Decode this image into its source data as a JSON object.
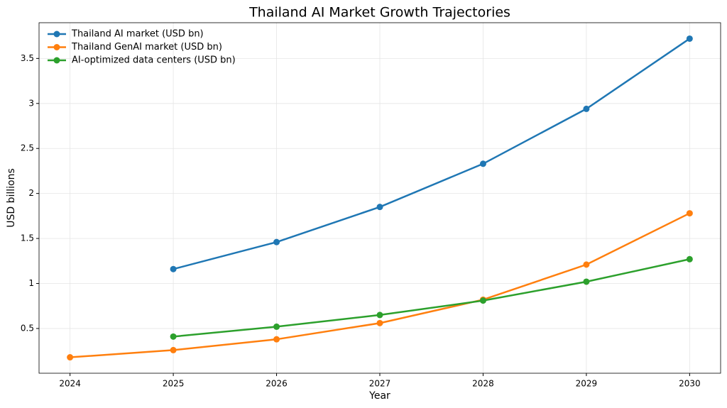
{
  "chart_data": {
    "type": "line",
    "title": "Thailand AI Market Growth Trajectories",
    "x_label": "Year",
    "y_label": "USD billions",
    "x": [
      2024,
      2025,
      2026,
      2027,
      2028,
      2029,
      2030
    ],
    "series": [
      {
        "name": "Thailand AI market (USD bn)",
        "color": "#1f77b4",
        "values": [
          null,
          1.16,
          1.46,
          1.85,
          2.33,
          2.94,
          3.72
        ]
      },
      {
        "name": "Thailand GenAI market (USD bn)",
        "color": "#ff7f0e",
        "values": [
          0.18,
          0.26,
          0.38,
          0.56,
          0.82,
          1.21,
          1.78
        ]
      },
      {
        "name": "AI-optimized data centers (USD bn)",
        "color": "#2ca02c",
        "values": [
          null,
          0.41,
          0.52,
          0.65,
          0.81,
          1.02,
          1.27
        ]
      }
    ],
    "xlim": [
      2023.7,
      2030.3
    ],
    "xticks": [
      2024,
      2025,
      2026,
      2027,
      2028,
      2029,
      2030
    ],
    "ylim": [
      0.003,
      3.897
    ],
    "yticks": [
      0.5,
      1.0,
      1.5,
      2.0,
      2.5,
      3.0,
      3.5
    ],
    "grid": true,
    "legend": "upper-left"
  }
}
